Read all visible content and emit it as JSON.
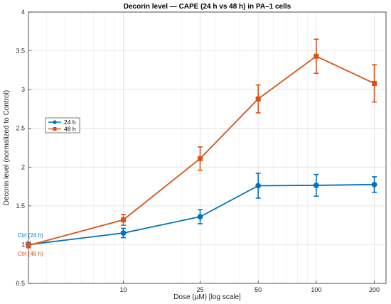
{
  "chart_data": {
    "type": "line",
    "title": "Decorin level — CAPE (24 h vs 48 h) in PA–1 cells",
    "xlabel": "Dose (μM) [log scale]",
    "ylabel": "Decorin level (normalized to Control)",
    "x_scale": "log",
    "x_ticks": [
      10,
      25,
      50,
      100,
      200
    ],
    "x_tick_labels": [
      "10",
      "25",
      "50",
      "100",
      "200"
    ],
    "ylim": [
      0.5,
      4
    ],
    "y_ticks": [
      0.5,
      1,
      1.5,
      2,
      2.5,
      3,
      3.5,
      4
    ],
    "y_tick_labels": [
      "0.5",
      "1",
      "1.5",
      "2",
      "2.5",
      "3",
      "3.5",
      "4"
    ],
    "grid": true,
    "legend_position": "left",
    "control_labels": [
      "Ctrl (24 h)",
      "Ctrl (48 h)"
    ],
    "series": [
      {
        "name": "24 h",
        "color": "#0072BD",
        "marker": "circle",
        "points": [
          {
            "x": "Ctrl",
            "y": 1.0,
            "err": 0.03
          },
          {
            "x": 10,
            "y": 1.15,
            "err": 0.06
          },
          {
            "x": 25,
            "y": 1.36,
            "err": 0.09
          },
          {
            "x": 50,
            "y": 1.76,
            "err": 0.16
          },
          {
            "x": 100,
            "y": 1.765,
            "err": 0.14
          },
          {
            "x": 200,
            "y": 1.775,
            "err": 0.1
          }
        ]
      },
      {
        "name": "48 h",
        "color": "#D95319",
        "marker": "square",
        "points": [
          {
            "x": "Ctrl",
            "y": 0.99,
            "err": 0.03
          },
          {
            "x": 10,
            "y": 1.32,
            "err": 0.07
          },
          {
            "x": 25,
            "y": 2.11,
            "err": 0.15
          },
          {
            "x": 50,
            "y": 2.88,
            "err": 0.18
          },
          {
            "x": 100,
            "y": 3.43,
            "err": 0.22
          },
          {
            "x": 200,
            "y": 3.08,
            "err": 0.24
          }
        ]
      }
    ]
  }
}
